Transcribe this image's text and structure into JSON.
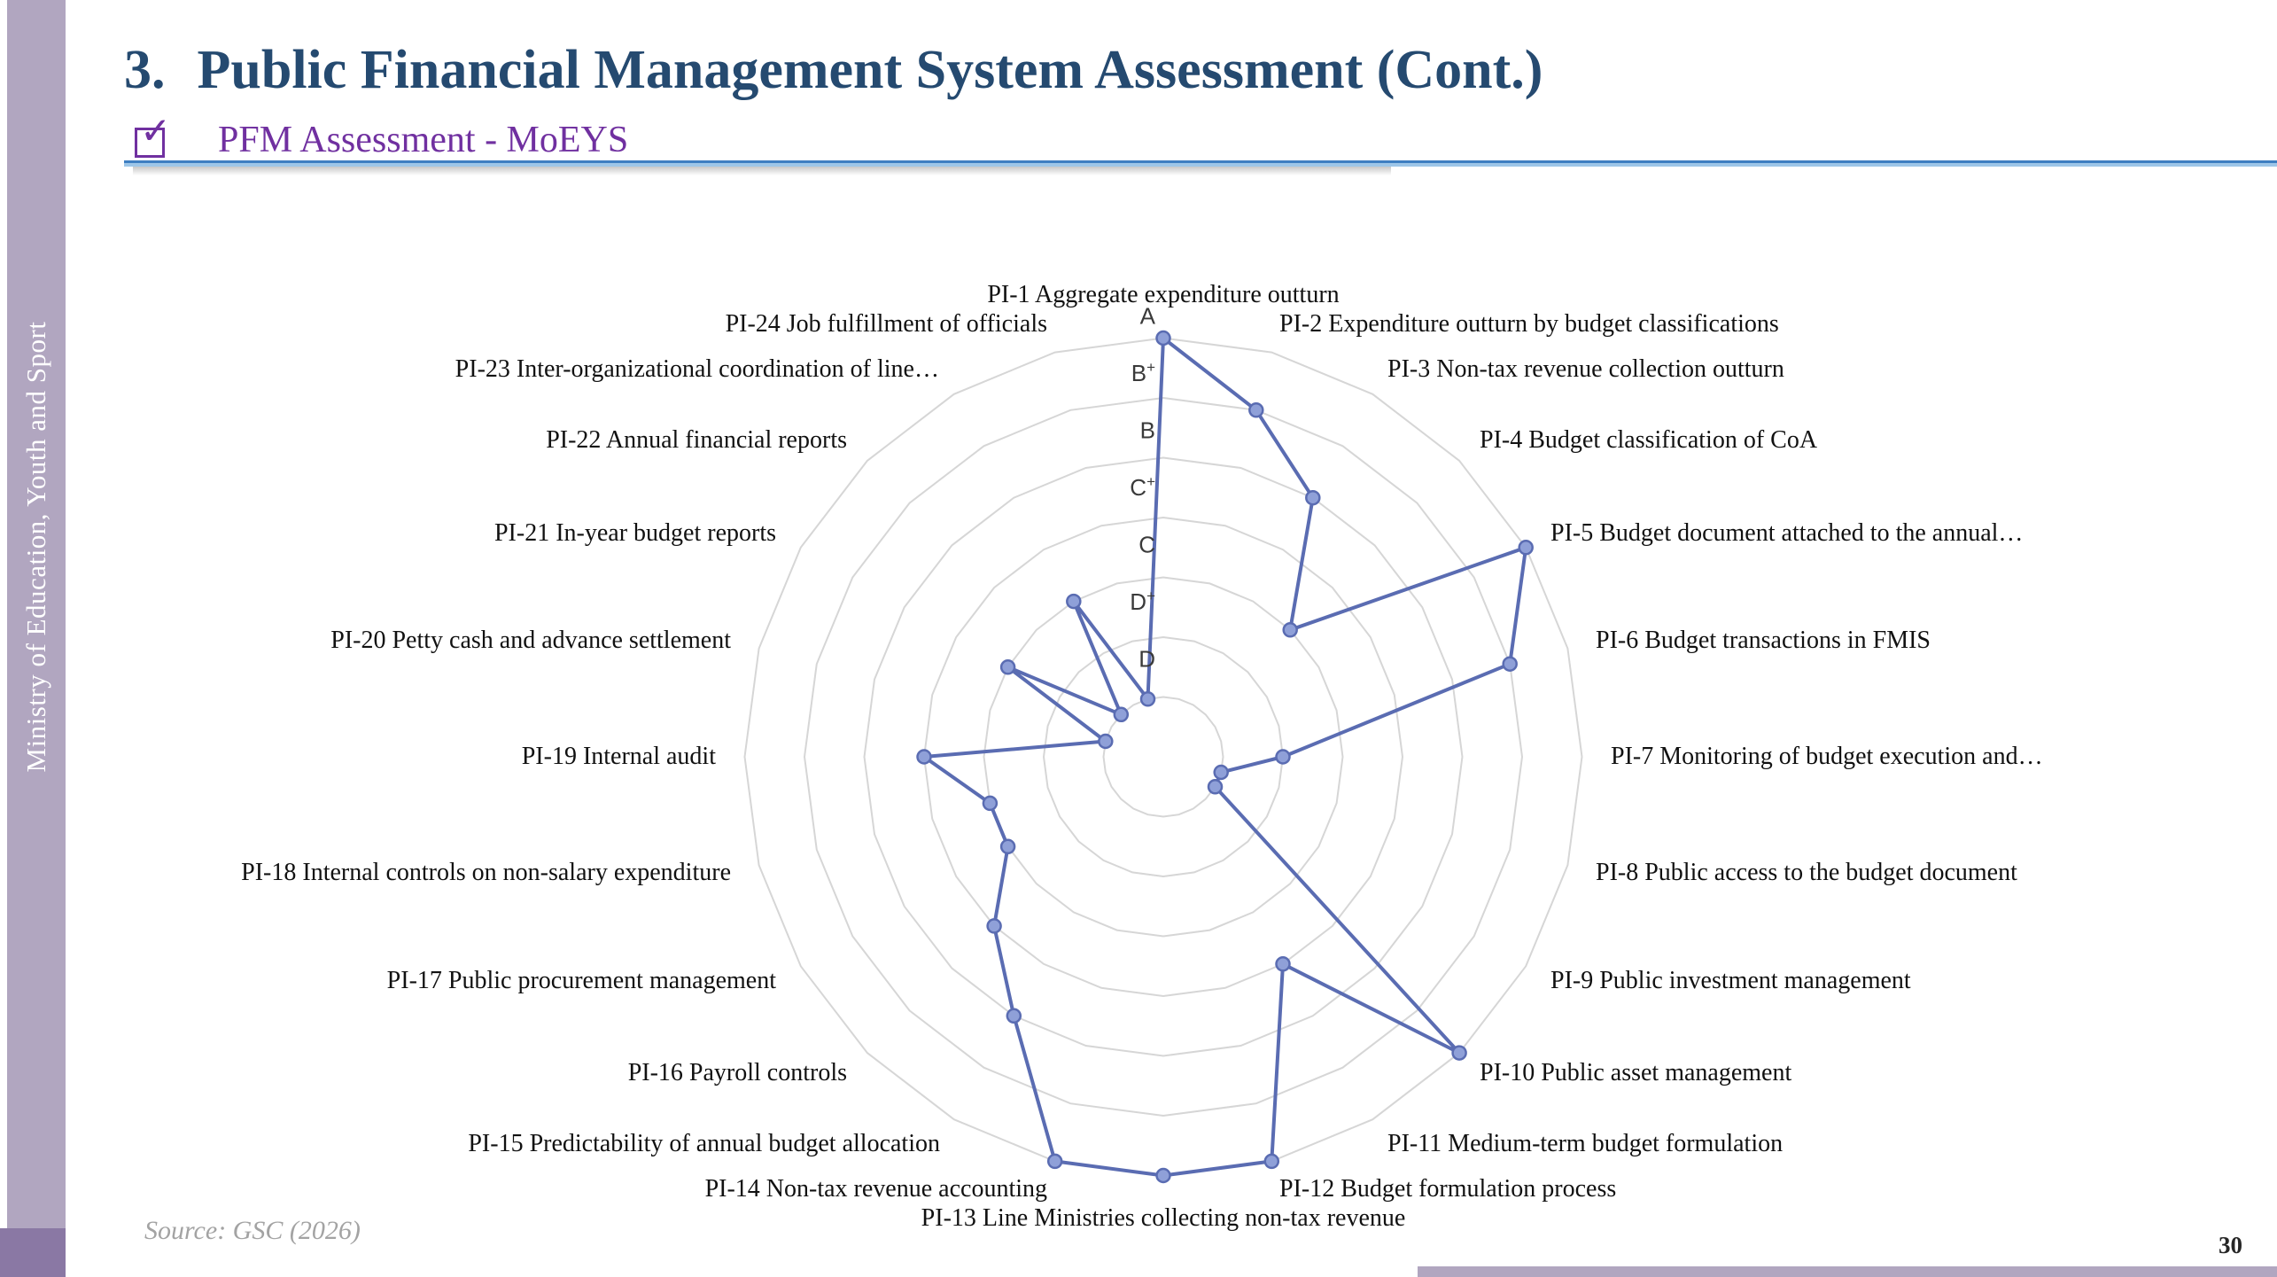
{
  "slide": {
    "title_number": "3.",
    "title_text": "Public Financial Management System Assessment (Cont.)",
    "bullet_label": "PFM Assessment - MoEYS",
    "sidebar_text": "Ministry of Education, Youth and Sport",
    "source_note": "Source: GSC (2026)",
    "page_number": "30"
  },
  "colors": {
    "title": "#254a70",
    "accent_purple": "#7030a0",
    "sidebar": "#b1a6c0",
    "sidebar_dark": "#8a78a4",
    "line": "#5a6cb2",
    "marker_fill": "#8fa0d8",
    "grid": "#d6d6d6"
  },
  "chart_data": {
    "type": "radar",
    "title": "",
    "legend": "none",
    "grid": true,
    "rings": 7,
    "axis_labels_outer_to_inner": [
      "A",
      "B+",
      "B",
      "C+",
      "C",
      "D+",
      "D"
    ],
    "scale_note": "grades mapped to numbers: D=1, D+=2, C=3, C+=4, B=5, B+=6, A=7; center=0",
    "categories": [
      "PI-1 Aggregate expenditure outturn",
      "PI-2 Expenditure outturn by budget classifications",
      "PI-3 Non-tax revenue collection outturn",
      "PI-4 Budget classification of CoA",
      "PI-5 Budget document attached to the annual…",
      "PI-6 Budget transactions in FMIS",
      "PI-7 Monitoring of budget execution and…",
      "PI-8 Public access to the budget document",
      "PI-9 Public investment management",
      "PI-10 Public asset management",
      "PI-11 Medium-term budget formulation",
      "PI-12 Budget formulation process",
      "PI-13 Line Ministries collecting non-tax revenue",
      "PI-14 Non-tax revenue accounting",
      "PI-15 Predictability of annual budget allocation",
      "PI-16 Payroll controls",
      "PI-17 Public procurement management",
      "PI-18 Internal controls on non-salary expenditure",
      "PI-19 Internal audit",
      "PI-20 Petty cash and advance settlement",
      "PI-21 In-year budget reports",
      "PI-22 Annual financial reports",
      "PI-23 Inter-organizational coordination of line…",
      "PI-24 Job fulfillment of officials"
    ],
    "grades": [
      "A",
      "B+",
      "B",
      "C",
      "A",
      "B+",
      "D+",
      "D",
      "D",
      "A",
      "C+",
      "A",
      "A",
      "A",
      "B",
      "C+",
      "C",
      "C",
      "C+",
      "D",
      "C",
      "D",
      "C",
      "D"
    ],
    "values": [
      7,
      6,
      5,
      3,
      7,
      6,
      2,
      1,
      1,
      7,
      4,
      7,
      7,
      7,
      5,
      4,
      3,
      3,
      4,
      1,
      3,
      1,
      3,
      1
    ]
  }
}
